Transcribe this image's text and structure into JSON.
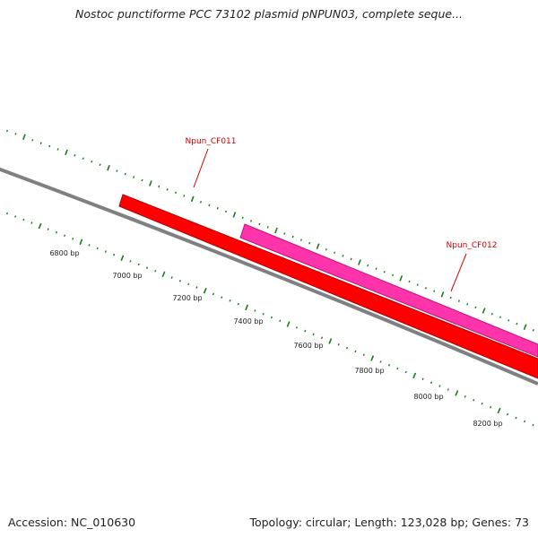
{
  "title": "Nostoc punctiforme PCC 73102 plasmid pNPUN03, complete seque...",
  "footer": {
    "accession": "Accession: NC_010630",
    "summary": "Topology: circular; Length: 123,028 bp; Genes: 73"
  },
  "scale_labels": [
    "6800 bp",
    "7000 bp",
    "7200 bp",
    "7400 bp",
    "7600 bp",
    "7800 bp",
    "8000 bp",
    "8200 bp"
  ],
  "genes": [
    {
      "name": "Npun_CF011",
      "color": "#ff0000",
      "border": "#b00000",
      "label_color": "#cc0000"
    },
    {
      "name": "Npun_CF012",
      "color": "#ff33aa",
      "border": "#c0107a",
      "label_color": "#cc0000"
    }
  ],
  "colors": {
    "backbone": "#808080",
    "tick": "#1a7a1a",
    "label": "#222222"
  }
}
